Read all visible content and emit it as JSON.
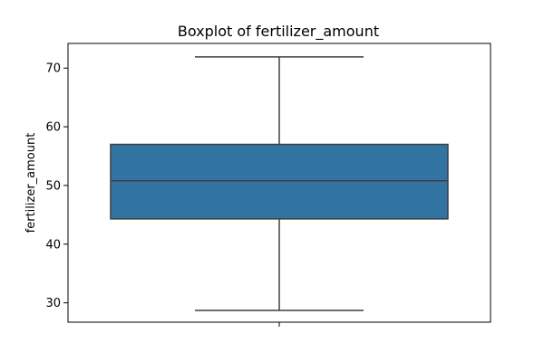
{
  "chart_data": {
    "type": "boxplot",
    "title": "Boxplot of fertilizer_amount",
    "xlabel": "",
    "ylabel": "fertilizer_amount",
    "ylim": [
      26.7,
      74.2
    ],
    "yticks": [
      30,
      40,
      50,
      60,
      70
    ],
    "grid": false,
    "box": {
      "whisker_low": 28.7,
      "q1": 44.3,
      "median": 50.8,
      "q3": 57.0,
      "whisker_high": 71.9
    },
    "colors": {
      "box_fill": "#3274a1",
      "line": "#3f3f3f",
      "axes": "#000000"
    }
  }
}
